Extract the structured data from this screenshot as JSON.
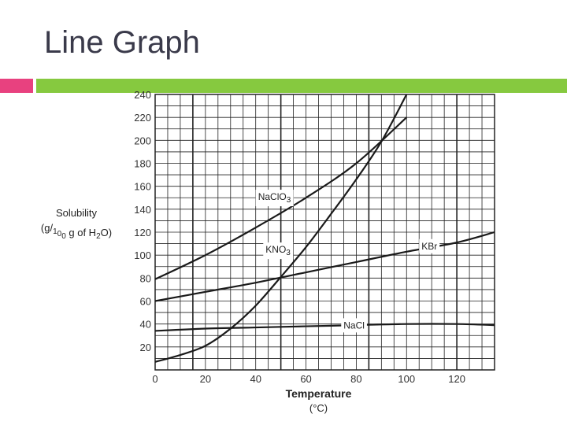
{
  "slide": {
    "title": "Line Graph",
    "accent_colors": {
      "pink": "#e8417f",
      "green": "#86c93f"
    }
  },
  "chart_data": {
    "type": "line",
    "title": "",
    "xlabel": "Temperature (°C)",
    "ylabel": "Solubility (g/100 g of H2O)",
    "xlim": [
      0,
      135
    ],
    "ylim": [
      0,
      240
    ],
    "xticks": [
      0,
      20,
      40,
      60,
      80,
      100,
      120
    ],
    "yticks": [
      20,
      40,
      60,
      80,
      100,
      120,
      140,
      160,
      180,
      200,
      220,
      240
    ],
    "grid": true,
    "series": [
      {
        "name": "NaClO3",
        "x": [
          0,
          20,
          40,
          60,
          80,
          100
        ],
        "y": [
          79,
          100,
          124,
          150,
          180,
          220
        ]
      },
      {
        "name": "KNO3",
        "x": [
          0,
          10,
          20,
          30,
          40,
          50,
          60,
          70,
          80,
          90,
          100
        ],
        "y": [
          7,
          13,
          21,
          36,
          56,
          81,
          107,
          136,
          166,
          199,
          240
        ]
      },
      {
        "name": "KBr",
        "x": [
          0,
          20,
          40,
          60,
          80,
          100,
          120,
          135
        ],
        "y": [
          60,
          68,
          76,
          85,
          94,
          103,
          111,
          120
        ]
      },
      {
        "name": "NaCl",
        "x": [
          0,
          20,
          40,
          60,
          80,
          100,
          120,
          135
        ],
        "y": [
          34,
          36,
          37,
          38,
          39,
          40,
          40,
          39
        ]
      }
    ]
  }
}
